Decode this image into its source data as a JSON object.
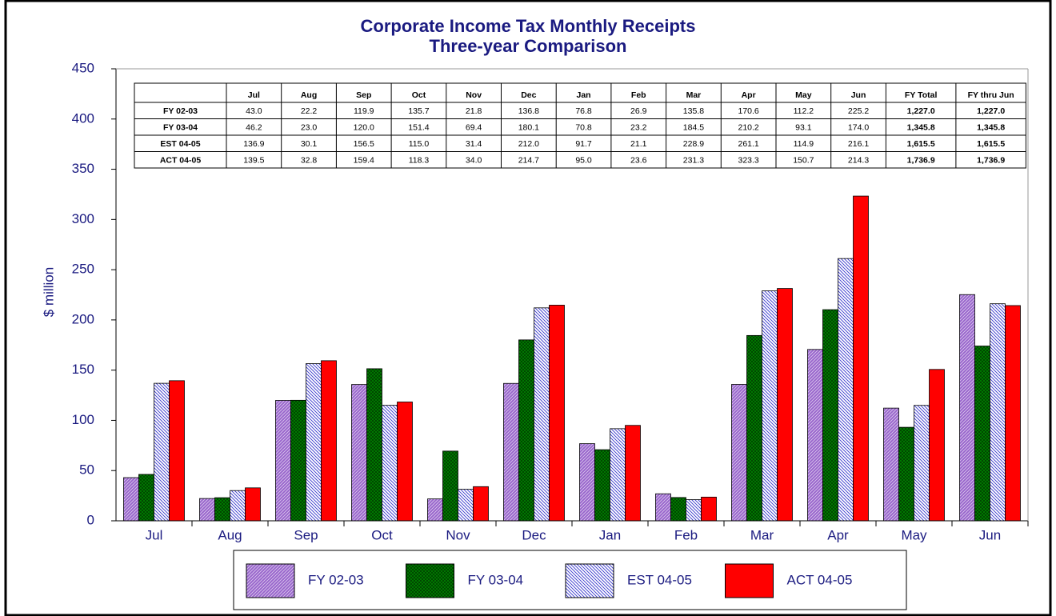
{
  "chart_data": {
    "type": "bar",
    "title": "Corporate Income Tax Monthly Receipts",
    "subtitle": "Three-year Comparison",
    "y_label": "$ million",
    "categories": [
      "Jul",
      "Aug",
      "Sep",
      "Oct",
      "Nov",
      "Dec",
      "Jan",
      "Feb",
      "Mar",
      "Apr",
      "May",
      "Jun"
    ],
    "ylim": [
      0,
      450
    ],
    "yticks": [
      0,
      50,
      100,
      150,
      200,
      250,
      300,
      350,
      400,
      450
    ],
    "table_columns": [
      "FY Total",
      "FY thru Jun"
    ],
    "series": [
      {
        "name": "FY 02-03",
        "color": "#9966cc",
        "pattern": "diagonal",
        "values": [
          43.0,
          22.2,
          119.9,
          135.7,
          21.8,
          136.8,
          76.8,
          26.9,
          135.8,
          170.6,
          112.2,
          225.2
        ],
        "value_labels": [
          "43.0",
          "22.2",
          "119.9",
          "135.7",
          "21.8",
          "136.8",
          "76.8",
          "26.9",
          "135.8",
          "170.6",
          "112.2",
          "225.2"
        ],
        "total": {
          "value": 1227.0,
          "label": "1,227.0"
        },
        "ytd": {
          "value": 1227.0,
          "label": "1,227.0"
        }
      },
      {
        "name": "FY 03-04",
        "color": "#008000",
        "pattern": "crosshatch",
        "values": [
          46.2,
          23.0,
          120.0,
          151.4,
          69.4,
          180.1,
          70.8,
          23.2,
          184.5,
          210.2,
          93.1,
          174.0
        ],
        "value_labels": [
          "46.2",
          "23.0",
          "120.0",
          "151.4",
          "69.4",
          "180.1",
          "70.8",
          "23.2",
          "184.5",
          "210.2",
          "93.1",
          "174.0"
        ],
        "total": {
          "value": 1345.8,
          "label": "1,345.8"
        },
        "ytd": {
          "value": 1345.8,
          "label": "1,345.8"
        }
      },
      {
        "name": "EST 04-05",
        "color": "#3333cc",
        "pattern": "stripes",
        "values": [
          136.9,
          30.1,
          156.5,
          115.0,
          31.4,
          212.0,
          91.7,
          21.1,
          228.9,
          261.1,
          114.9,
          216.1
        ],
        "value_labels": [
          "136.9",
          "30.1",
          "156.5",
          "115.0",
          "31.4",
          "212.0",
          "91.7",
          "21.1",
          "228.9",
          "261.1",
          "114.9",
          "216.1"
        ],
        "total": {
          "value": 1615.5,
          "label": "1,615.5"
        },
        "ytd": {
          "value": 1615.5,
          "label": "1,615.5"
        }
      },
      {
        "name": "ACT 04-05",
        "color": "#ff0000",
        "pattern": "solid",
        "values": [
          139.5,
          32.8,
          159.4,
          118.3,
          34.0,
          214.7,
          95.0,
          23.6,
          231.3,
          323.3,
          150.7,
          214.3
        ],
        "value_labels": [
          "139.5",
          "32.8",
          "159.4",
          "118.3",
          "34.0",
          "214.7",
          "95.0",
          "23.6",
          "231.3",
          "323.3",
          "150.7",
          "214.3"
        ],
        "total": {
          "value": 1736.9,
          "label": "1,736.9"
        },
        "ytd": {
          "value": 1736.9,
          "label": "1,736.9"
        }
      }
    ]
  }
}
